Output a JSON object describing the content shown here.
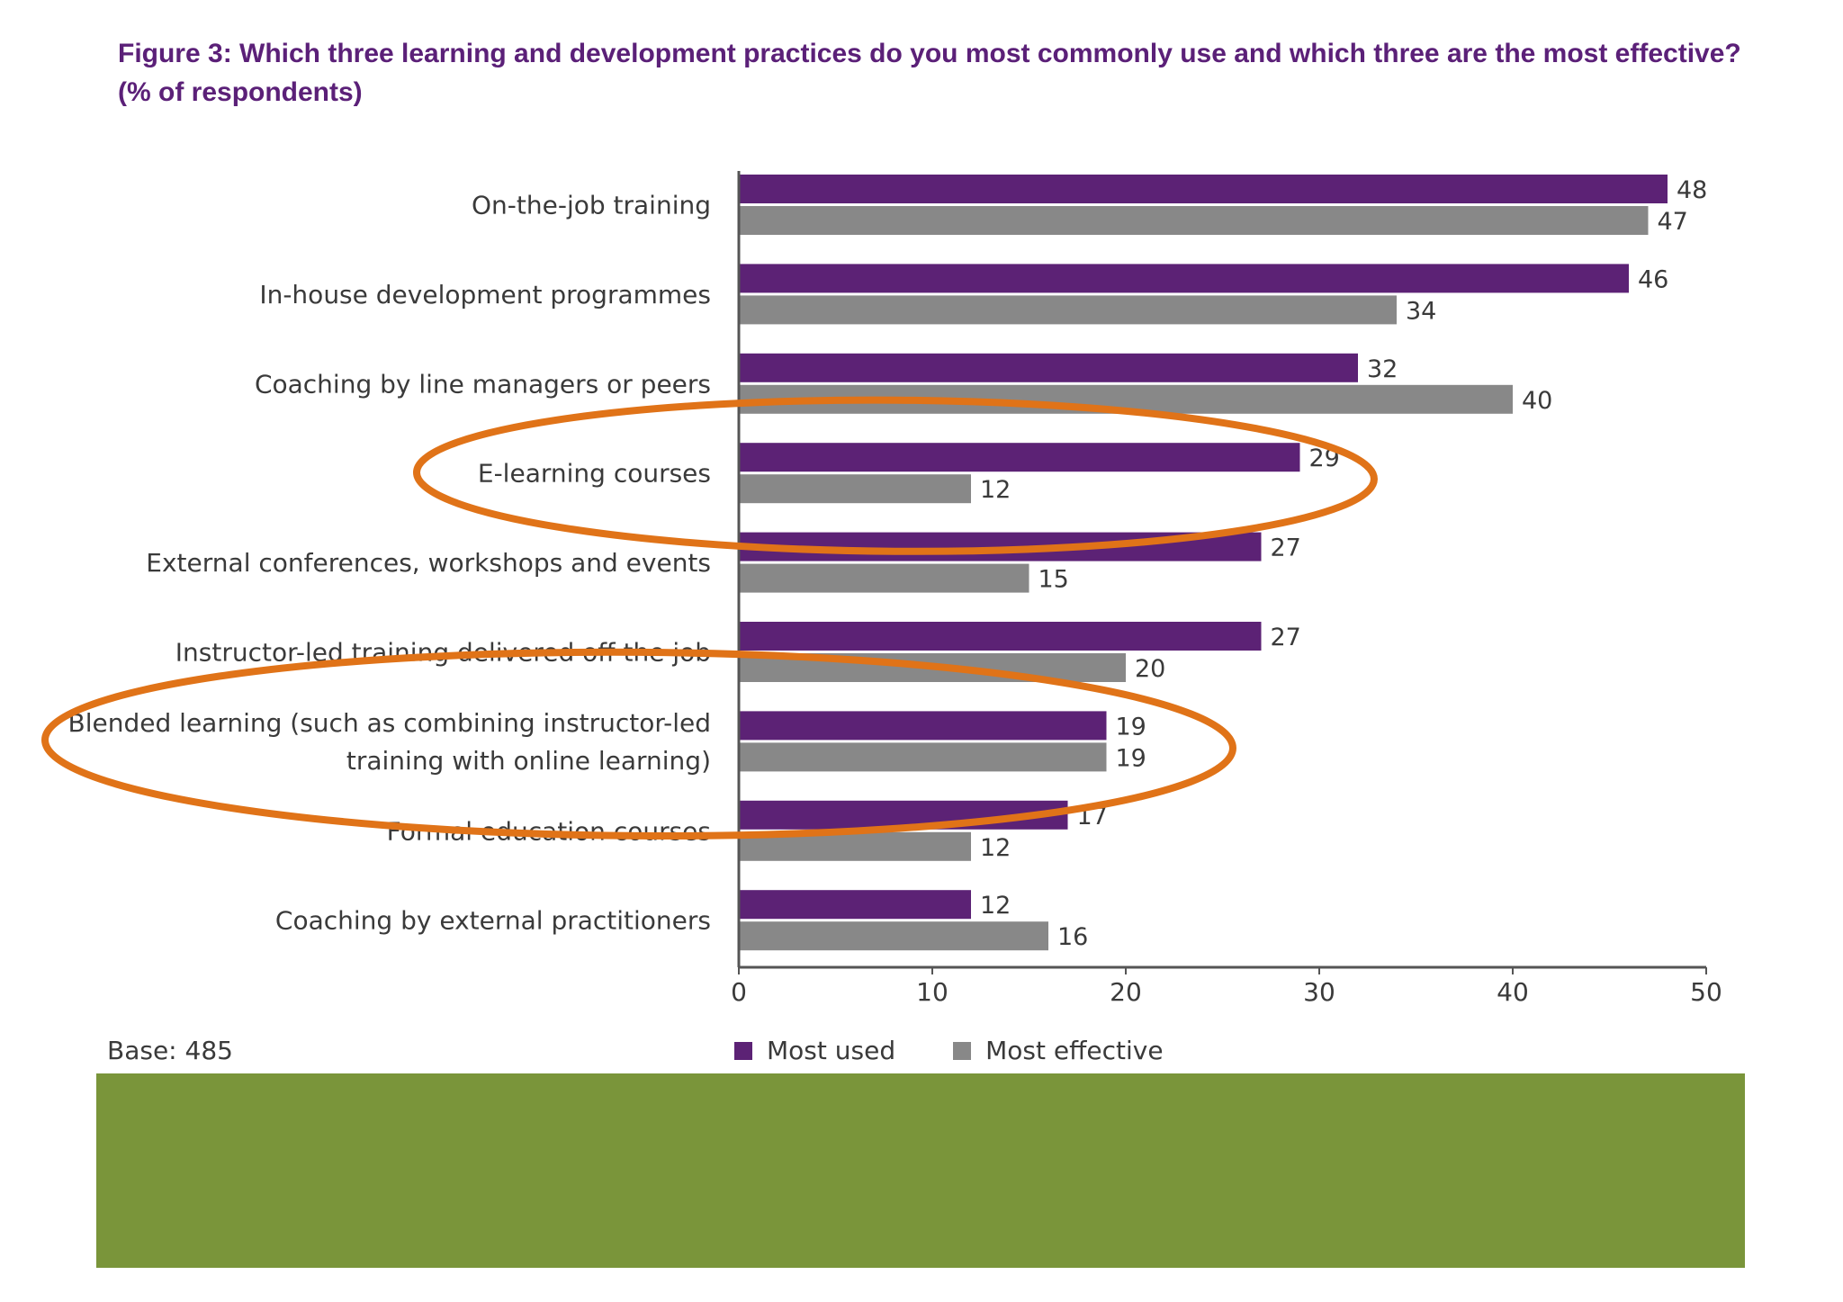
{
  "figure": {
    "title_line1": "Figure 3: Which three learning and development practices do you most commonly use and which three are the most effective?",
    "title_line2": "(% of respondents)",
    "base_note": "Base: 485"
  },
  "colors": {
    "most_used": "#5c2275",
    "most_effective": "#888888",
    "highlight": "#e07318",
    "band": "#7a953a",
    "axis": "#555555"
  },
  "legend": {
    "most_used_label": "Most used",
    "most_effective_label": "Most effective"
  },
  "chart_data": {
    "type": "bar",
    "orientation": "horizontal",
    "title": "Figure 3: Which three learning and development practices do you most commonly use and which three are the most effective? (% of respondents)",
    "categories": [
      [
        "On-the-job training"
      ],
      [
        "In-house development programmes"
      ],
      [
        "Coaching by line managers or peers"
      ],
      [
        "E-learning courses"
      ],
      [
        "External conferences, workshops and events"
      ],
      [
        "Instructor-led training delivered off the job"
      ],
      [
        "Blended learning (such as combining instructor-led",
        "training with online learning)"
      ],
      [
        "Formal education courses"
      ],
      [
        "Coaching by external practitioners"
      ]
    ],
    "series": [
      {
        "name": "Most used",
        "values": [
          48,
          46,
          32,
          29,
          27,
          27,
          19,
          17,
          12
        ]
      },
      {
        "name": "Most effective",
        "values": [
          47,
          34,
          40,
          12,
          15,
          20,
          19,
          12,
          16
        ]
      }
    ],
    "xlim": [
      0,
      50
    ],
    "xticks": [
      0,
      10,
      20,
      30,
      40,
      50
    ],
    "xlabel": "",
    "ylabel": "",
    "legend_position": "bottom",
    "grid": false,
    "annotations": [
      {
        "type": "ellipse-highlight",
        "category": "E-learning courses"
      },
      {
        "type": "ellipse-highlight",
        "category": "Blended learning (such as combining instructor-led training with online learning)"
      }
    ]
  }
}
